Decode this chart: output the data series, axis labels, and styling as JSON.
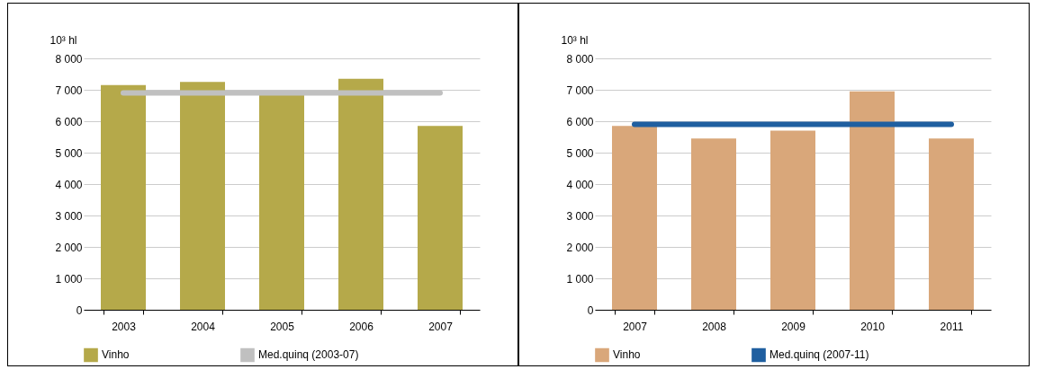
{
  "chart_data": [
    {
      "type": "bar",
      "ylabel": "10³ hl",
      "categories": [
        "2003",
        "2004",
        "2005",
        "2006",
        "2007"
      ],
      "series": [
        {
          "name": "Vinho",
          "color": "#b5a94a",
          "values": [
            7150,
            7250,
            6850,
            7350,
            5850
          ]
        },
        {
          "name": "Med.quinq (2003-07)",
          "type": "line",
          "color": "#c0c0c0",
          "values": [
            6900,
            6900,
            6900,
            6900,
            6900
          ]
        }
      ],
      "ylim": [
        0,
        8000
      ],
      "yticks": [
        0,
        {
          "value": 1000,
          "label": "1 000"
        },
        {
          "value": 2000,
          "label": "2 000"
        },
        {
          "value": 3000,
          "label": "3 000"
        },
        {
          "value": 4000,
          "label": "4 000"
        },
        {
          "value": 5000,
          "label": "5 000"
        },
        {
          "value": 6000,
          "label": "6 000"
        },
        {
          "value": 7000,
          "label": "7 000"
        },
        {
          "value": 8000,
          "label": "8 000"
        }
      ],
      "grid": "y",
      "legend": "bottom"
    },
    {
      "type": "bar",
      "ylabel": "10³ hl",
      "categories": [
        "2007",
        "2008",
        "2009",
        "2010",
        "2011"
      ],
      "series": [
        {
          "name": "Vinho",
          "color": "#d9a77a",
          "values": [
            5850,
            5450,
            5700,
            6950,
            5450
          ]
        },
        {
          "name": "Med.quinq (2007-11)",
          "type": "line",
          "color": "#1f5fa0",
          "values": [
            5900,
            5900,
            5900,
            5900,
            5900
          ]
        }
      ],
      "ylim": [
        0,
        8000
      ],
      "yticks": [
        0,
        {
          "value": 1000,
          "label": "1 000"
        },
        {
          "value": 2000,
          "label": "2 000"
        },
        {
          "value": 3000,
          "label": "3 000"
        },
        {
          "value": 4000,
          "label": "4 000"
        },
        {
          "value": 5000,
          "label": "5 000"
        },
        {
          "value": 6000,
          "label": "6 000"
        },
        {
          "value": 7000,
          "label": "7 000"
        },
        {
          "value": 8000,
          "label": "8 000"
        }
      ],
      "grid": "y",
      "legend": "bottom"
    }
  ]
}
